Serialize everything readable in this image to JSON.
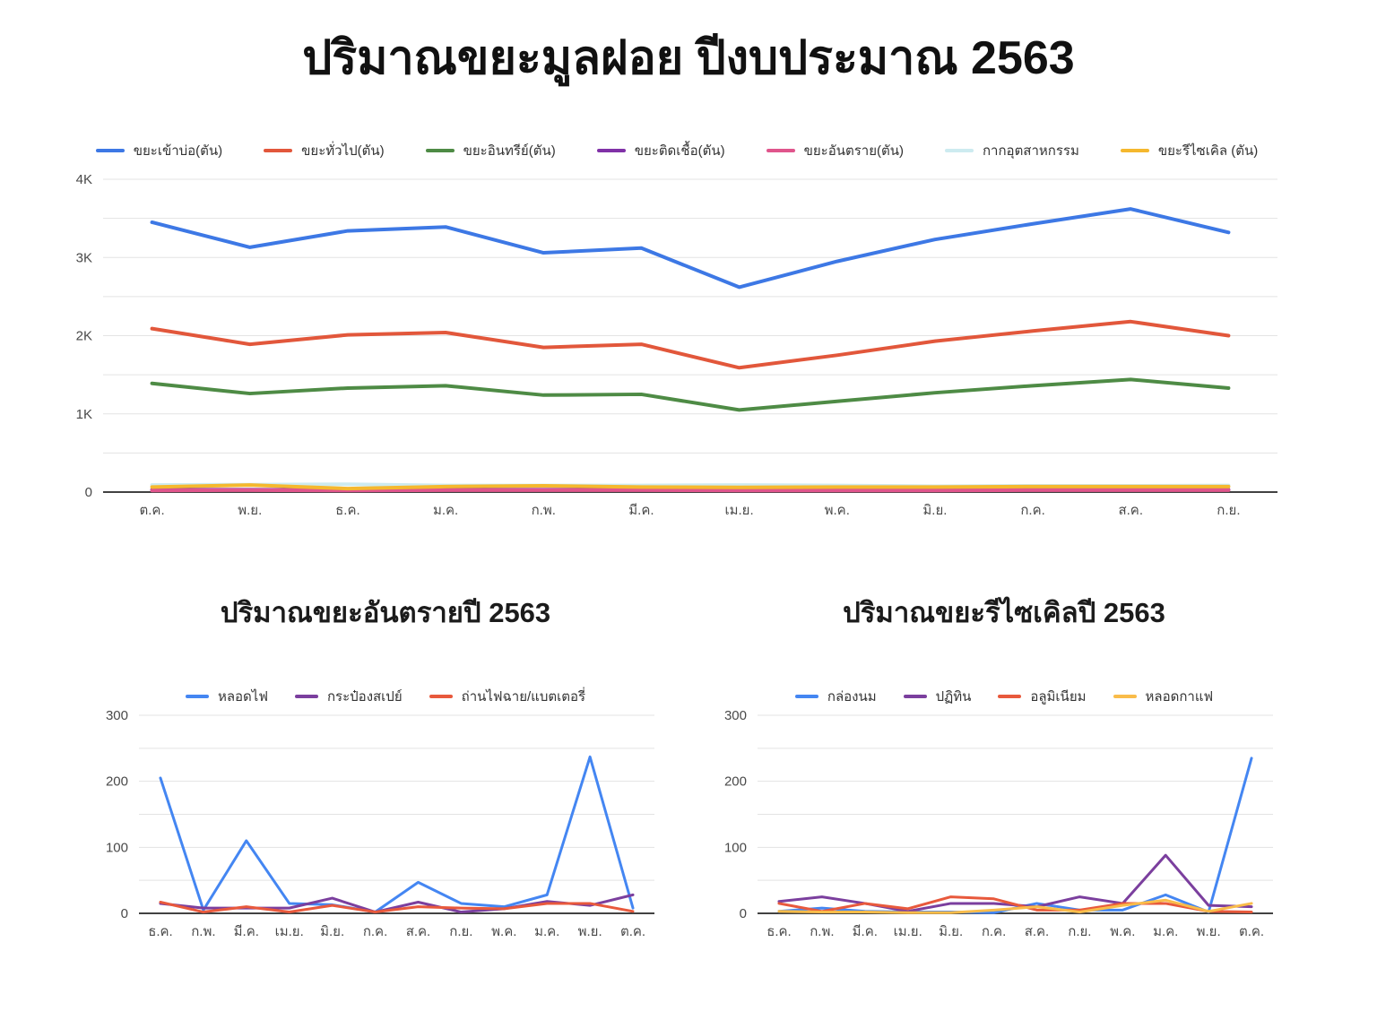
{
  "page_title": "ปริมาณขยะมูลฝอย ปีงบประมาณ 2563",
  "chart_data": [
    {
      "type": "line",
      "title": "ปริมาณขยะมูลฝอย ปีงบประมาณ 2563",
      "xlabel": "",
      "ylabel": "",
      "ylim": [
        0,
        4000
      ],
      "grid": true,
      "grid_step": 500,
      "label_step": 1000,
      "y_format": "K",
      "legend_position": "top",
      "categories": [
        "ต.ค.",
        "พ.ย.",
        "ธ.ค.",
        "ม.ค.",
        "ก.พ.",
        "มี.ค.",
        "เม.ย.",
        "พ.ค.",
        "มิ.ย.",
        "ก.ค.",
        "ส.ค.",
        "ก.ย."
      ],
      "series": [
        {
          "name": "ขยะเข้าบ่อ(ตัน)",
          "color": "#3D78E5",
          "values": [
            3450,
            3130,
            3340,
            3390,
            3060,
            3120,
            2620,
            2950,
            3230,
            3430,
            3620,
            3320
          ]
        },
        {
          "name": "ขยะทั่วไป(ตัน)",
          "color": "#E2573B",
          "values": [
            2090,
            1890,
            2010,
            2040,
            1850,
            1890,
            1590,
            1750,
            1930,
            2060,
            2180,
            2000
          ]
        },
        {
          "name": "ขยะอินทรีย์(ตัน)",
          "color": "#4E8B45",
          "values": [
            1390,
            1260,
            1330,
            1360,
            1240,
            1250,
            1050,
            1160,
            1270,
            1360,
            1440,
            1330
          ]
        },
        {
          "name": "ขยะติดเชื้อ(ตัน)",
          "color": "#8031A7",
          "values": [
            30,
            30,
            25,
            30,
            30,
            30,
            25,
            25,
            25,
            30,
            30,
            30
          ]
        },
        {
          "name": "ขยะอันตราย(ตัน)",
          "color": "#E0558C",
          "values": [
            20,
            25,
            20,
            25,
            25,
            25,
            20,
            20,
            20,
            25,
            25,
            25
          ]
        },
        {
          "name": "กากอุตสาหกรรม",
          "color": "#CDEBF0",
          "values": [
            90,
            95,
            100,
            85,
            85,
            85,
            90,
            85,
            75,
            80,
            80,
            85
          ]
        },
        {
          "name": "ขยะรีไซเคิล (ตัน)",
          "color": "#F5B82E",
          "values": [
            65,
            90,
            45,
            70,
            80,
            65,
            60,
            65,
            65,
            70,
            70,
            70
          ]
        }
      ]
    },
    {
      "type": "line",
      "title": "ปริมาณขยะอันตรายปี 2563",
      "xlabel": "",
      "ylabel": "",
      "ylim": [
        0,
        300
      ],
      "grid": true,
      "grid_step": 50,
      "label_step": 100,
      "y_format": "plain",
      "legend_position": "top",
      "categories": [
        "ธ.ค.",
        "ก.พ.",
        "มี.ค.",
        "เม.ย.",
        "มิ.ย.",
        "ก.ค.",
        "ส.ค.",
        "ก.ย.",
        "พ.ค.",
        "ม.ค.",
        "พ.ย.",
        "ต.ค."
      ],
      "series": [
        {
          "name": "หลอดไฟ",
          "color": "#4486F2",
          "values": [
            205,
            5,
            110,
            15,
            13,
            2,
            47,
            15,
            10,
            28,
            237,
            8
          ]
        },
        {
          "name": "กระป๋องสเปย์",
          "color": "#7B3F9E",
          "values": [
            15,
            8,
            8,
            8,
            23,
            2,
            17,
            2,
            7,
            18,
            12,
            28
          ]
        },
        {
          "name": "ถ่านไฟฉาย/แบตเตอรี่",
          "color": "#E8593C",
          "values": [
            17,
            2,
            10,
            2,
            12,
            2,
            10,
            8,
            7,
            15,
            15,
            3
          ]
        }
      ]
    },
    {
      "type": "line",
      "title": "ปริมาณขยะรีไซเคิลปี 2563",
      "xlabel": "",
      "ylabel": "",
      "ylim": [
        0,
        300
      ],
      "grid": true,
      "grid_step": 50,
      "label_step": 100,
      "y_format": "plain",
      "legend_position": "top",
      "categories": [
        "ธ.ค.",
        "ก.พ.",
        "มี.ค.",
        "เม.ย.",
        "มิ.ย.",
        "ก.ค.",
        "ส.ค.",
        "ก.ย.",
        "พ.ค.",
        "ม.ค.",
        "พ.ย.",
        "ต.ค."
      ],
      "series": [
        {
          "name": "กล่องนม",
          "color": "#4486F2",
          "values": [
            3,
            8,
            3,
            2,
            2,
            1,
            15,
            5,
            5,
            28,
            2,
            235
          ]
        },
        {
          "name": "ปฏิทิน",
          "color": "#7B3F9E",
          "values": [
            18,
            25,
            15,
            3,
            15,
            15,
            10,
            25,
            15,
            88,
            12,
            10
          ]
        },
        {
          "name": "อลูมิเนียม",
          "color": "#E8593C",
          "values": [
            15,
            3,
            15,
            7,
            25,
            22,
            5,
            5,
            15,
            15,
            3,
            2
          ]
        },
        {
          "name": "หลอดกาแฟ",
          "color": "#F9BC4A",
          "values": [
            3,
            2,
            2,
            1,
            1,
            5,
            10,
            2,
            12,
            20,
            3,
            15
          ]
        }
      ]
    }
  ],
  "styles": {
    "grid_color": "#E3E3E3",
    "axis_color": "#424242",
    "tick_color": "#494949"
  }
}
